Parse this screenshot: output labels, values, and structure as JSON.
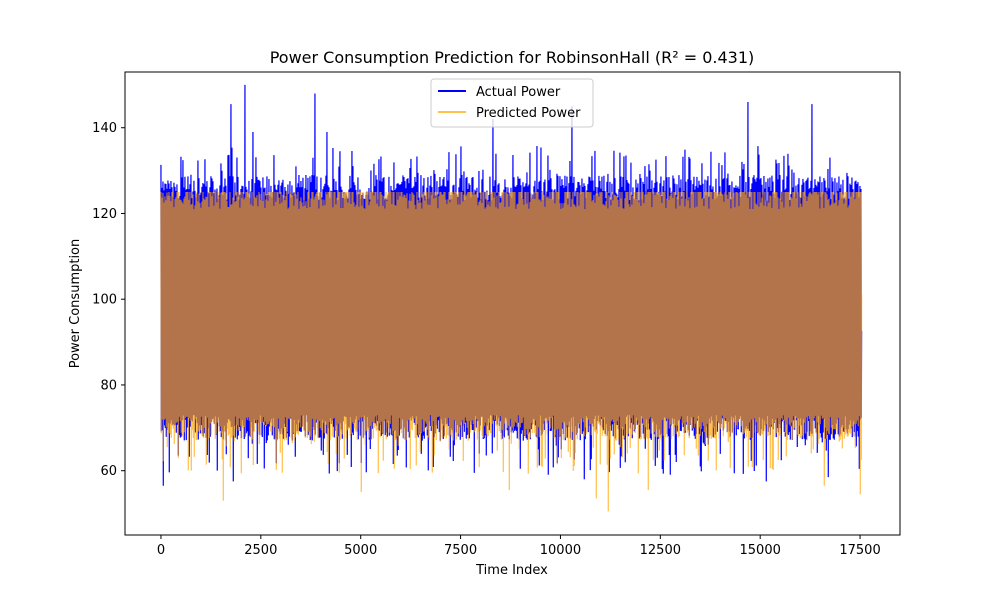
{
  "chart_data": {
    "type": "line",
    "title": "Power Consumption Prediction for RobinsonHall (R² = 0.431)",
    "xlabel": "Time Index",
    "ylabel": "Power Consumption",
    "xlim": [
      -900,
      18500
    ],
    "ylim": [
      45,
      153
    ],
    "x_ticks": [
      0,
      2500,
      5000,
      7500,
      10000,
      12500,
      15000,
      17500
    ],
    "x_tick_labels": [
      "0",
      "2500",
      "5000",
      "7500",
      "10000",
      "12500",
      "15000",
      "17500"
    ],
    "y_ticks": [
      60,
      80,
      100,
      120,
      140
    ],
    "y_tick_labels": [
      "60",
      "80",
      "100",
      "120",
      "140"
    ],
    "grid": false,
    "legend_position": "upper center",
    "series": [
      {
        "name": "Actual Power",
        "color": "#0000ff",
        "x_range": [
          0,
          17520
        ],
        "band_center": 98,
        "band_low": 70,
        "band_high": 126,
        "approx_min": 56.5,
        "approx_max": 150,
        "peaks": [
          {
            "x": 2100,
            "y": 150
          },
          {
            "x": 3850,
            "y": 148
          },
          {
            "x": 10300,
            "y": 145
          },
          {
            "x": 1750,
            "y": 145.5
          },
          {
            "x": 14700,
            "y": 146
          },
          {
            "x": 16300,
            "y": 145.5
          },
          {
            "x": 8300,
            "y": 142
          },
          {
            "x": 2300,
            "y": 139
          },
          {
            "x": 4150,
            "y": 139
          }
        ],
        "troughs": [
          {
            "x": 50,
            "y": 56.5
          },
          {
            "x": 1800,
            "y": 57.5
          },
          {
            "x": 10600,
            "y": 58
          },
          {
            "x": 15150,
            "y": 57.5
          },
          {
            "x": 16700,
            "y": 58.5
          }
        ]
      },
      {
        "name": "Predicted Power",
        "color": "#ffa500",
        "x_range": [
          0,
          17520
        ],
        "band_center": 97,
        "band_low": 70,
        "band_high": 124,
        "approx_min": 50.5,
        "approx_max": 125,
        "peaks": [
          {
            "x": 2000,
            "y": 125
          },
          {
            "x": 1450,
            "y": 124
          },
          {
            "x": 9700,
            "y": 124
          }
        ],
        "troughs": [
          {
            "x": 11200,
            "y": 50.5
          },
          {
            "x": 1550,
            "y": 53
          },
          {
            "x": 17500,
            "y": 54.5
          },
          {
            "x": 5000,
            "y": 55
          },
          {
            "x": 8700,
            "y": 55.5
          },
          {
            "x": 10900,
            "y": 53.5
          },
          {
            "x": 12200,
            "y": 55.5
          },
          {
            "x": 16600,
            "y": 56.5
          }
        ]
      }
    ]
  }
}
